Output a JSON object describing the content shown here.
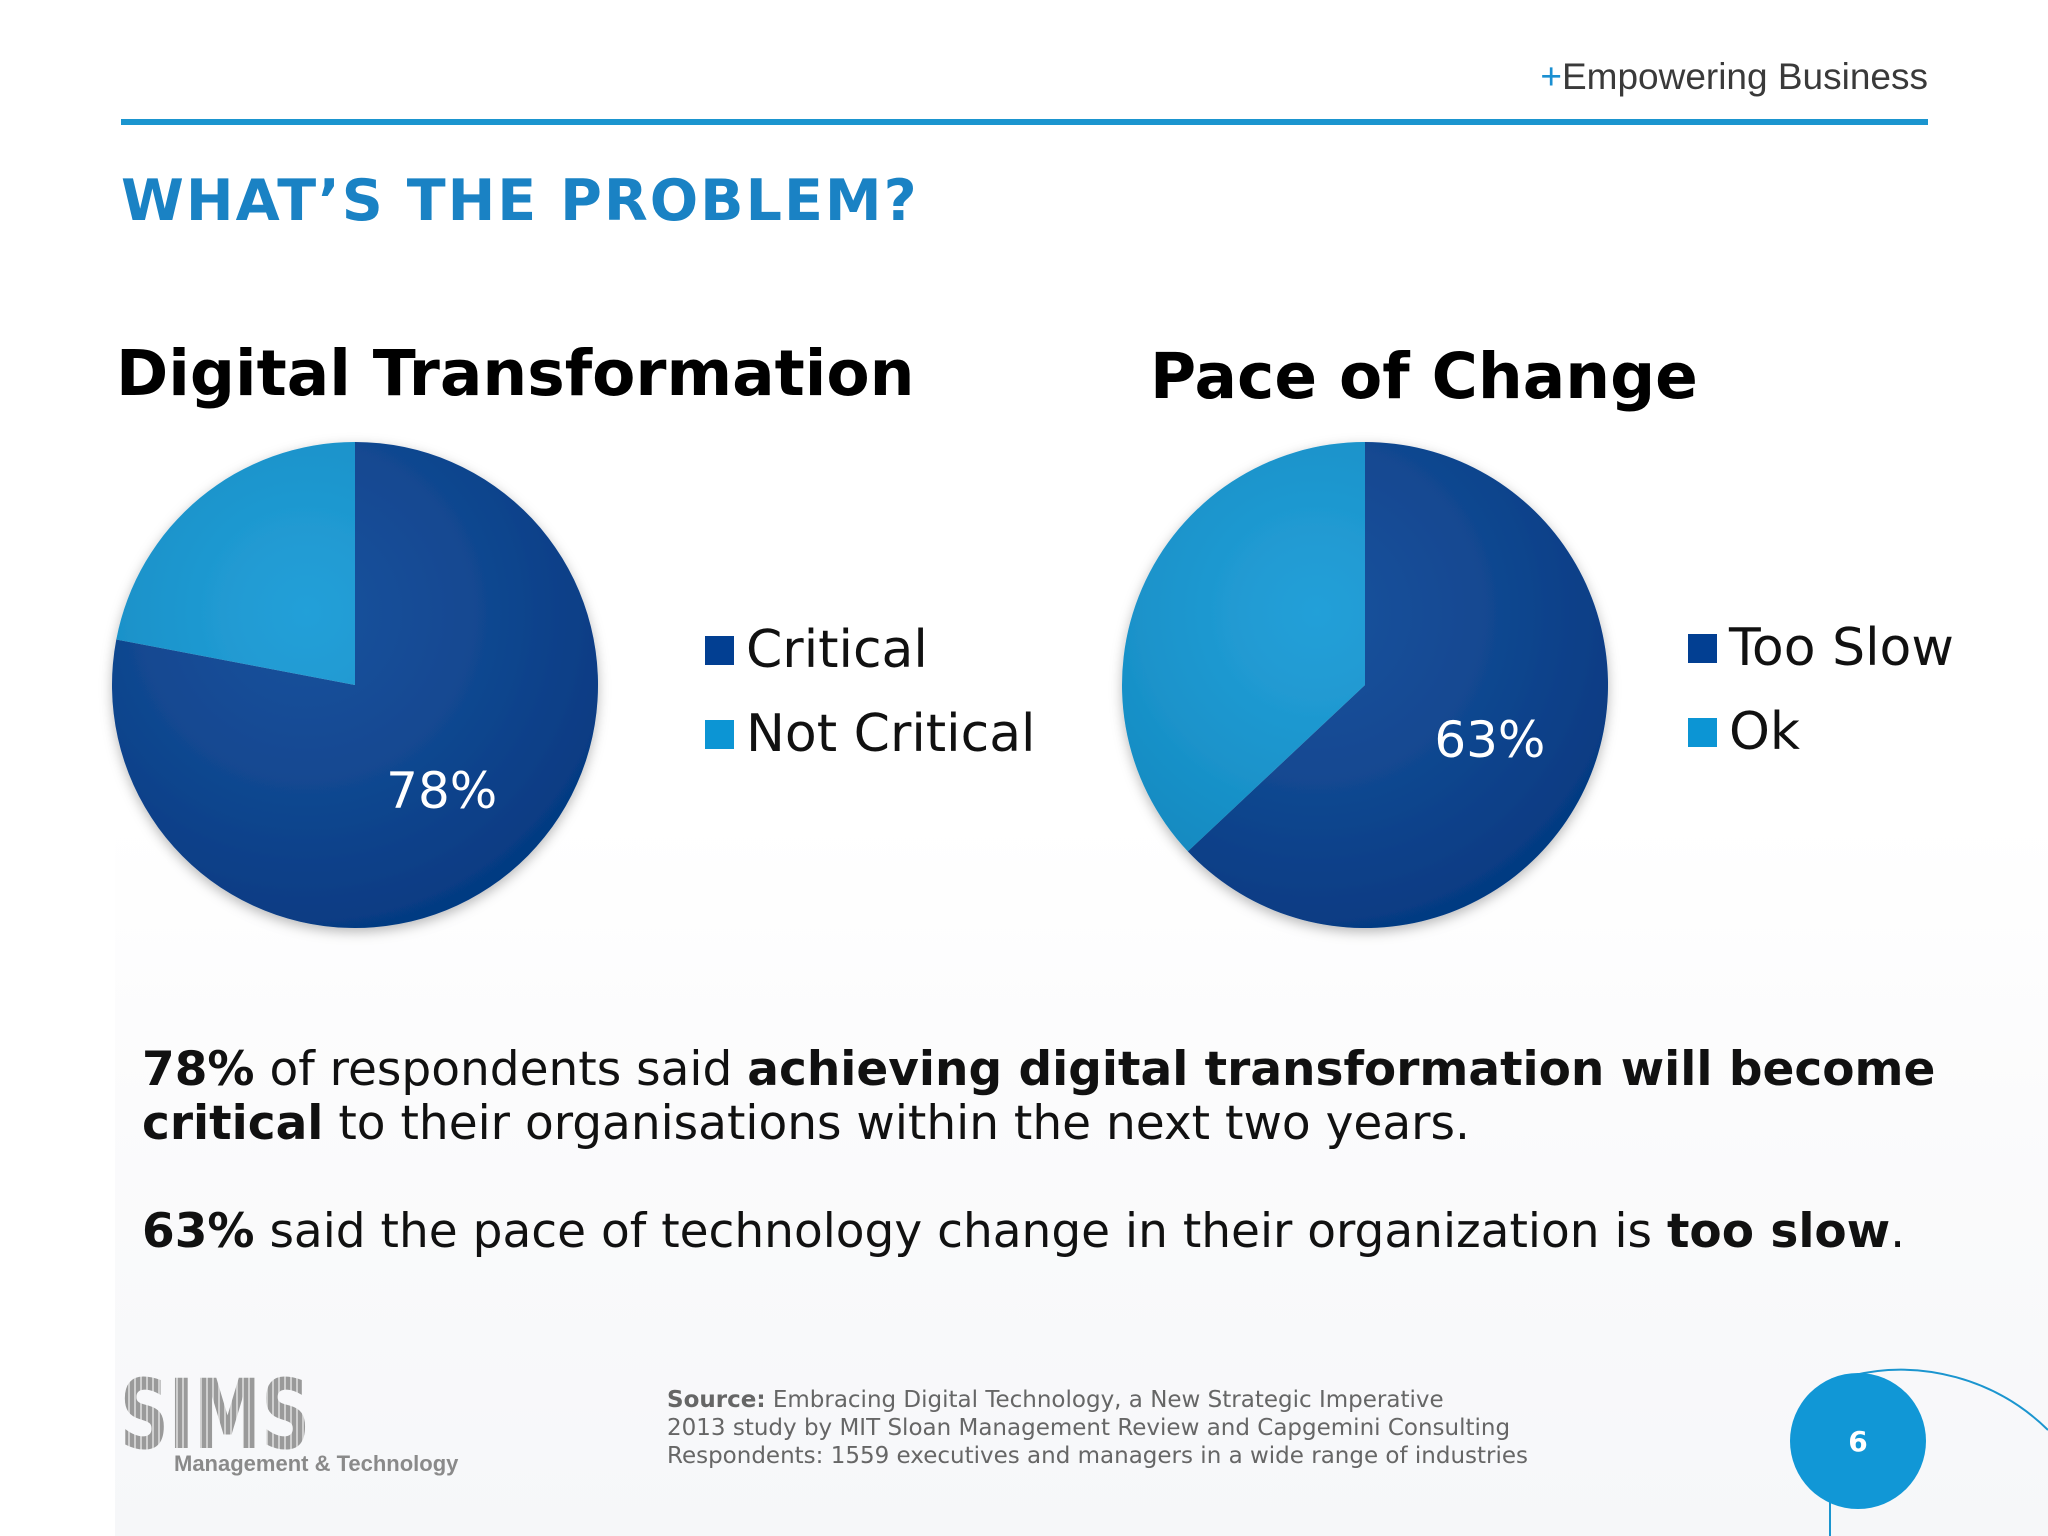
{
  "header": {
    "tagline_plus": "+",
    "tagline_text": "Empowering Business",
    "page_title": "WHAT’S THE PROBLEM?"
  },
  "colors": {
    "accent": "#1b95cf",
    "title": "#1a82c4",
    "series_dark": "#023f92",
    "series_light": "#0c95d4"
  },
  "chart_data": [
    {
      "type": "pie",
      "title": "Digital Transformation",
      "legend_position": "right",
      "slices": [
        {
          "label": "Critical",
          "value": 78,
          "color": "#023f92",
          "data_label": "78%"
        },
        {
          "label": "Not Critical",
          "value": 22,
          "color": "#0c95d4",
          "data_label": ""
        }
      ]
    },
    {
      "type": "pie",
      "title": "Pace of Change",
      "legend_position": "right",
      "slices": [
        {
          "label": "Too Slow",
          "value": 63,
          "color": "#023f92",
          "data_label": "63%"
        },
        {
          "label": "Ok",
          "value": 37,
          "color": "#0c95d4",
          "data_label": ""
        }
      ]
    }
  ],
  "body": {
    "p1_a": "78%",
    "p1_b": " of respondents said ",
    "p1_c": "achieving digital transformation will become critical",
    "p1_d": " to their organisations within the next two years.",
    "p2_a": "63%",
    "p2_b": " said the pace of technology change in their organization is ",
    "p2_c": "too slow",
    "p2_d": "."
  },
  "source": {
    "label": "Source:",
    "line1": " Embracing Digital Technology, a New Strategic Imperative",
    "line2": "2013 study by MIT Sloan Management Review and Capgemini Consulting",
    "line3": "Respondents: 1559 executives and managers in a wide range of industries"
  },
  "footer": {
    "logo_text": "SIMS",
    "logo_subtitle": "Management & Technology",
    "page_number": "6"
  }
}
